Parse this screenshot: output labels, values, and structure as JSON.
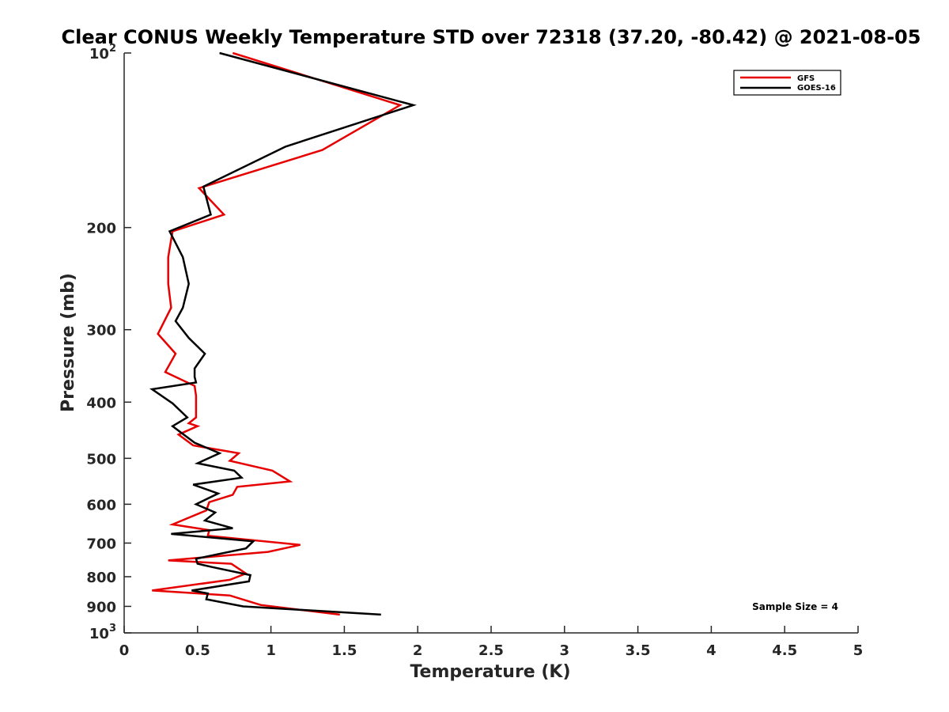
{
  "chart_data": {
    "type": "line",
    "title": "Clear CONUS Weekly Temperature STD over 72318 (37.20, -80.42) @ 2021-08-05",
    "xlabel": "Temperature (K)",
    "ylabel": "Pressure (mb)",
    "xlim": [
      0,
      5
    ],
    "ylim": [
      100,
      1000
    ],
    "y_scale": "log",
    "y_reversed": true,
    "grid": false,
    "legend_position": "top-right",
    "x_ticks": [
      "0",
      "0.5",
      "1",
      "1.5",
      "2",
      "2.5",
      "3",
      "3.5",
      "4",
      "4.5",
      "5"
    ],
    "x_tick_values": [
      0,
      0.5,
      1,
      1.5,
      2,
      2.5,
      3,
      3.5,
      4,
      4.5,
      5
    ],
    "y_tick_values": [
      100,
      200,
      300,
      400,
      500,
      600,
      700,
      800,
      900,
      1000
    ],
    "y_ticks": [
      {
        "base": "10",
        "exp": "2"
      },
      {
        "text": "200"
      },
      {
        "text": "300"
      },
      {
        "text": "400"
      },
      {
        "text": "500"
      },
      {
        "text": "600"
      },
      {
        "text": "700"
      },
      {
        "text": "800"
      },
      {
        "text": "900"
      },
      {
        "base": "10",
        "exp": "3"
      }
    ],
    "series": [
      {
        "name": "GFS",
        "color": "#e60000",
        "x": [
          0.74,
          1.88,
          1.35,
          0.51,
          0.68,
          0.33,
          0.3,
          0.3,
          0.32,
          0.23,
          0.35,
          0.28,
          0.48,
          0.49,
          0.49,
          0.44,
          0.5,
          0.37,
          0.47,
          0.78,
          0.72,
          1.01,
          1.13,
          0.77,
          0.74,
          0.58,
          0.56,
          0.33,
          0.58,
          0.57,
          1.2,
          0.98,
          0.3,
          0.73,
          0.83,
          0.72,
          0.19,
          0.72,
          0.93,
          1.47
        ],
        "y": [
          100,
          123,
          147,
          171,
          190,
          203,
          225,
          250,
          275,
          305,
          330,
          355,
          375,
          390,
          425,
          435,
          440,
          455,
          475,
          490,
          505,
          525,
          548,
          560,
          578,
          595,
          615,
          650,
          665,
          680,
          705,
          725,
          750,
          760,
          790,
          810,
          845,
          862,
          895,
          930
        ]
      },
      {
        "name": "GOES-16",
        "color": "#000000",
        "x": [
          0.65,
          1.97,
          1.1,
          0.54,
          0.59,
          0.31,
          0.4,
          0.44,
          0.4,
          0.35,
          0.44,
          0.55,
          0.48,
          0.48,
          0.49,
          0.19,
          0.33,
          0.43,
          0.33,
          0.48,
          0.65,
          0.5,
          0.75,
          0.8,
          0.47,
          0.64,
          0.49,
          0.62,
          0.55,
          0.74,
          0.32,
          0.88,
          0.83,
          0.49,
          0.5,
          0.6,
          0.86,
          0.85,
          0.46,
          0.57,
          0.56,
          0.81,
          1.75
        ],
        "y": [
          100,
          123,
          145,
          170,
          190,
          203,
          225,
          250,
          275,
          290,
          310,
          330,
          350,
          362,
          370,
          380,
          402,
          425,
          440,
          470,
          490,
          510,
          525,
          540,
          555,
          575,
          600,
          620,
          640,
          660,
          675,
          695,
          715,
          745,
          760,
          770,
          795,
          815,
          845,
          855,
          875,
          900,
          930
        ]
      }
    ],
    "annotations": [
      {
        "text": "Sample Size = 4"
      }
    ]
  }
}
